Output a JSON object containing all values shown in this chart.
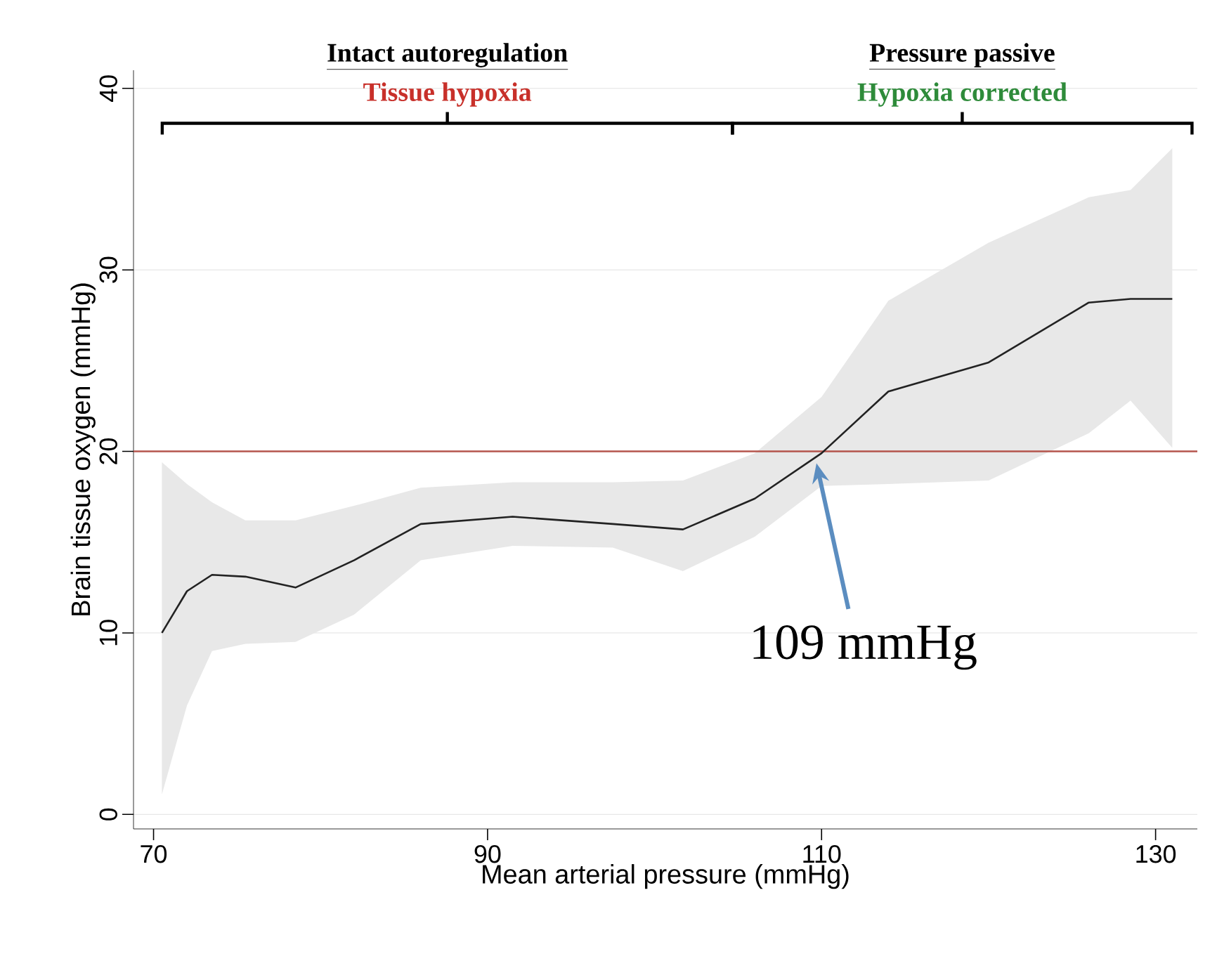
{
  "chart_data": {
    "type": "line",
    "xlabel": "Mean arterial pressure (mmHg)",
    "ylabel": "Brain tissue oxygen (mmHg)",
    "x": [
      70.5,
      72,
      73.5,
      75.5,
      78.5,
      82,
      86,
      91.5,
      97.5,
      101.7,
      106,
      110,
      114,
      120,
      126,
      128.5,
      131
    ],
    "series": [
      {
        "color": "#222222",
        "values": [
          10,
          12.3,
          13.2,
          13.1,
          12.5,
          14,
          16,
          16.4,
          16,
          15.7,
          17.4,
          19.9,
          23.3,
          24.9,
          28.2,
          28.4,
          28.4
        ],
        "lower": [
          1.1,
          6,
          9,
          9.4,
          9.5,
          11,
          14,
          14.8,
          14.7,
          13.4,
          15.3,
          18.1,
          18.2,
          18.4,
          21,
          22.8,
          20.2
        ],
        "upper": [
          19.4,
          18.2,
          17.2,
          16.2,
          16.2,
          17,
          18,
          18.3,
          18.3,
          18.4,
          19.9,
          23,
          28.3,
          31.5,
          34,
          34.4,
          36.7
        ]
      }
    ],
    "xlim": [
      68.8,
      132.5
    ],
    "ylim": [
      -0.8,
      41
    ],
    "xticks": [
      70,
      90,
      110,
      130
    ],
    "yticks": [
      0,
      10,
      20,
      30,
      40
    ],
    "grid": "y",
    "marker": "none",
    "line_style": "solid",
    "ref_lines": [
      {
        "axis": "y",
        "value": 20,
        "color": "#b5544c"
      }
    ],
    "annotations": [
      "Intact autoregulation",
      "Tissue hypoxia",
      "Pressure passive",
      "Hypoxia corrected",
      "109 mmHg"
    ]
  }
}
